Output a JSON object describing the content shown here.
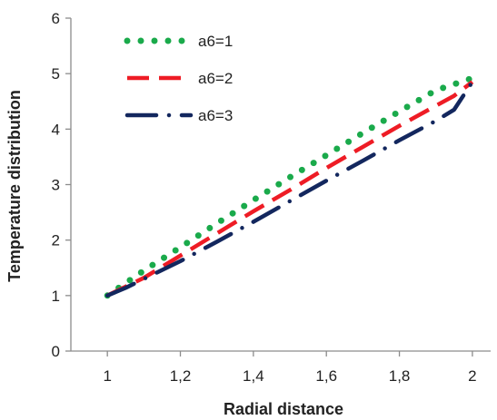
{
  "chart_data": {
    "type": "line",
    "title": "",
    "xlabel": "Radial distance",
    "ylabel": "Temperature distribution",
    "xlim": [
      0.9,
      2.05
    ],
    "ylim": [
      0,
      6
    ],
    "xticks": [
      1,
      1.2,
      1.4,
      1.6,
      1.8,
      2
    ],
    "xtick_labels": [
      "1",
      "1,2",
      "1,4",
      "1,6",
      "1,8",
      "2"
    ],
    "yticks": [
      0,
      1,
      2,
      3,
      4,
      5,
      6
    ],
    "ytick_labels": [
      "0",
      "1",
      "2",
      "3",
      "4",
      "5",
      "6"
    ],
    "grid": false,
    "legend_position": "top-left",
    "series": [
      {
        "name": "a6=1",
        "color": "#1aaa4b",
        "style": "dotted",
        "x": [
          1.0,
          1.1,
          1.2,
          1.3,
          1.4,
          1.5,
          1.6,
          1.7,
          1.8,
          1.9,
          2.0
        ],
        "y": [
          1.0,
          1.45,
          1.87,
          2.3,
          2.72,
          3.13,
          3.53,
          3.93,
          4.32,
          4.7,
          4.92
        ]
      },
      {
        "name": "a6=2",
        "color": "#ee1c25",
        "style": "dashed",
        "x": [
          1.0,
          1.1,
          1.2,
          1.3,
          1.4,
          1.5,
          1.6,
          1.7,
          1.8,
          1.9,
          1.95,
          2.0
        ],
        "y": [
          1.0,
          1.32,
          1.72,
          2.12,
          2.52,
          2.9,
          3.3,
          3.68,
          4.06,
          4.42,
          4.6,
          4.85
        ]
      },
      {
        "name": "a6=3",
        "color": "#13275e",
        "style": "dashdot",
        "x": [
          1.0,
          1.05,
          1.1,
          1.2,
          1.3,
          1.4,
          1.5,
          1.6,
          1.7,
          1.8,
          1.9,
          1.95,
          2.0
        ],
        "y": [
          1.0,
          1.14,
          1.3,
          1.62,
          1.97,
          2.33,
          2.7,
          3.07,
          3.43,
          3.8,
          4.15,
          4.35,
          4.85
        ]
      }
    ]
  }
}
